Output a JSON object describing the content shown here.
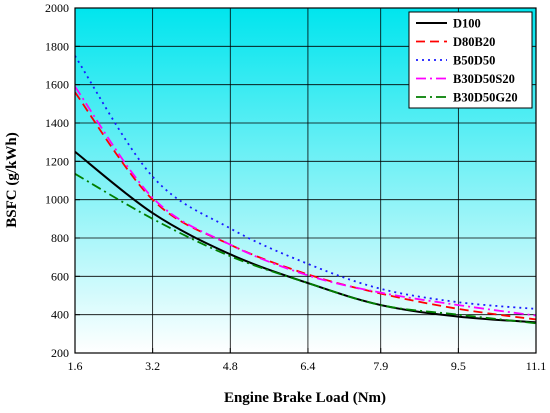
{
  "chart_data": {
    "type": "line",
    "xlabel": "Engine Brake Load (Nm)",
    "ylabel": "BSFC (g/kWh)",
    "xlim": [
      1.6,
      11.1
    ],
    "ylim": [
      200,
      2000
    ],
    "x_ticks": [
      1.6,
      3.2,
      4.8,
      6.4,
      7.9,
      9.5,
      11.1
    ],
    "x_tick_labels": [
      "1.6",
      "3.2",
      "4.8",
      "6.4",
      "7.9",
      "9.5",
      "11.1"
    ],
    "y_ticks": [
      200,
      400,
      600,
      800,
      1000,
      1200,
      1400,
      1600,
      1800,
      2000
    ],
    "y_tick_labels": [
      "200",
      "400",
      "600",
      "800",
      "1000",
      "1200",
      "1400",
      "1600",
      "1800",
      "2000"
    ],
    "grid": true,
    "legend_position": "top-right",
    "background_gradient": [
      "#00e5ee",
      "#ffffff"
    ],
    "x": [
      1.6,
      3.2,
      4.8,
      6.4,
      7.9,
      9.5,
      11.1
    ],
    "series": [
      {
        "name": "D100",
        "color": "#000000",
        "dash": "solid",
        "values": [
          1250,
          930,
          715,
          565,
          450,
          390,
          360
        ]
      },
      {
        "name": "D80B20",
        "color": "#ff0000",
        "dash": "dashed",
        "values": [
          1560,
          1000,
          765,
          610,
          510,
          430,
          375
        ]
      },
      {
        "name": "B50D50",
        "color": "#1a1aff",
        "dash": "dotted",
        "values": [
          1750,
          1120,
          850,
          665,
          535,
          465,
          430
        ]
      },
      {
        "name": "B30D50S20",
        "color": "#ff00ff",
        "dash": "dashdot",
        "values": [
          1590,
          1010,
          765,
          605,
          515,
          450,
          395
        ]
      },
      {
        "name": "B30D50G20",
        "color": "#007f00",
        "dash": "dashdot",
        "values": [
          1135,
          900,
          705,
          565,
          450,
          400,
          355
        ]
      }
    ]
  }
}
